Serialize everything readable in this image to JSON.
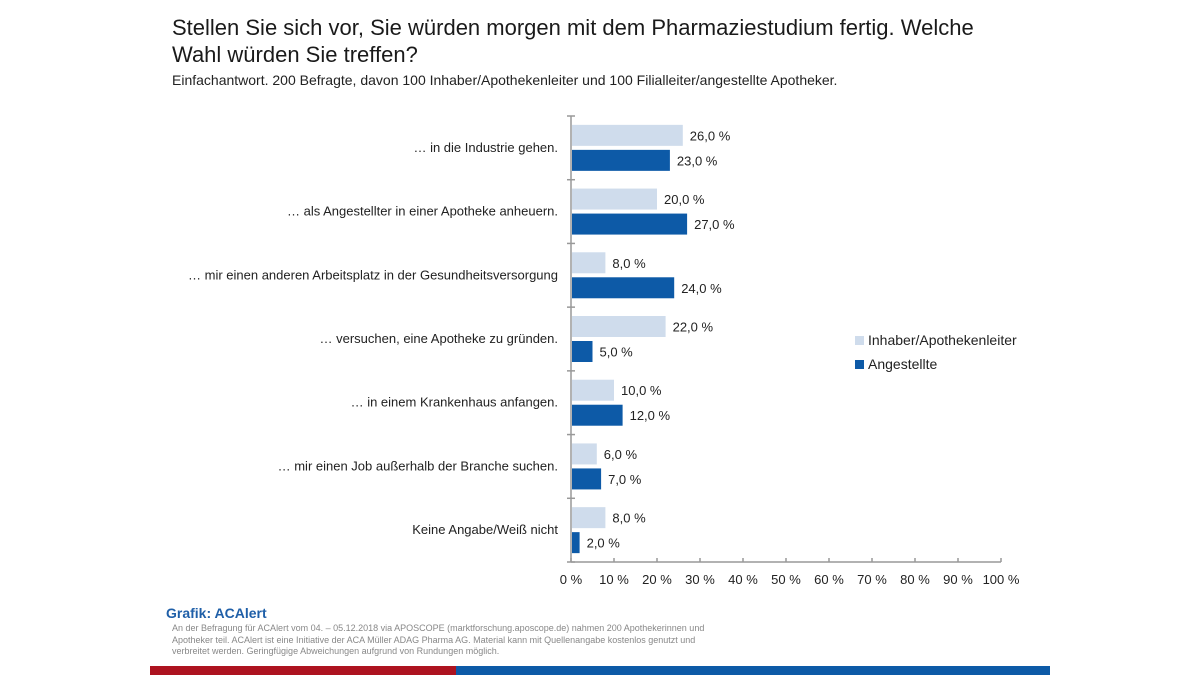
{
  "chart_data": {
    "type": "bar",
    "orientation": "horizontal",
    "title": "Stellen Sie sich vor, Sie würden morgen mit dem Pharmaziestudium fertig. Welche Wahl würden Sie treffen?",
    "subtitle": "Einfachantwort. 200 Befragte, davon 100 Inhaber/Apothekenleiter und 100 Filialleiter/angestellte Apotheker.",
    "categories": [
      "… in die Industrie gehen.",
      "… als Angestellter in einer Apotheke anheuern.",
      "… mir einen anderen Arbeitsplatz in der Gesundheitsversorgung",
      "… versuchen, eine Apotheke zu gründen.",
      "… in einem Krankenhaus anfangen.",
      "… mir einen Job außerhalb der Branche suchen.",
      "Keine Angabe/Weiß nicht"
    ],
    "series": [
      {
        "name": "Inhaber/Apothekenleiter",
        "color": "#cfdcec",
        "values": [
          26.0,
          20.0,
          8.0,
          22.0,
          10.0,
          6.0,
          8.0
        ]
      },
      {
        "name": "Angestellte",
        "color": "#0d5aa7",
        "values": [
          23.0,
          27.0,
          24.0,
          5.0,
          12.0,
          7.0,
          2.0
        ]
      }
    ],
    "value_labels": [
      [
        "26,0 %",
        "20,0 %",
        "8,0 %",
        "22,0 %",
        "10,0 %",
        "6,0 %",
        "8,0 %"
      ],
      [
        "23,0 %",
        "27,0 %",
        "24,0 %",
        "5,0 %",
        "12,0 %",
        "7,0 %",
        "2,0 %"
      ]
    ],
    "xlim": [
      0,
      100
    ],
    "xticks": [
      0,
      10,
      20,
      30,
      40,
      50,
      60,
      70,
      80,
      90,
      100
    ],
    "xtick_labels": [
      "0 %",
      "10 %",
      "20 %",
      "30 %",
      "40 %",
      "50 %",
      "60 %",
      "70 %",
      "80 %",
      "90 %",
      "100 %"
    ],
    "xlabel": "",
    "ylabel": "",
    "grid": false,
    "legend_position": "right"
  },
  "source": {
    "title": "Grafik: ACAlert",
    "text": "An der Befragung für ACAlert vom 04. – 05.12.2018 via APOSCOPE (marktforschung.aposcope.de) nahmen 200 Apothekerinnen und Apotheker teil. ACAlert ist eine Initiative der ACA Müller ADAG Pharma AG. Material kann mit Quellenangabe kostenlos genutzt und verbreitet werden. Geringfügige Abweichungen aufgrund von Rundungen möglich."
  },
  "colors": {
    "footer_red": "#ad1320",
    "footer_blue": "#0d5aa7",
    "source_title": "#1f5fa8"
  }
}
